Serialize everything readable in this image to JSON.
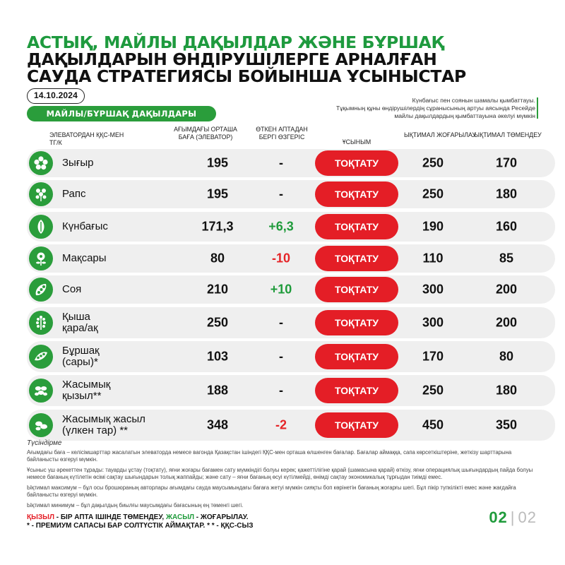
{
  "title": {
    "line1": "Астық, майлы дақылдар және бұршақ",
    "line2": "дақылдарын өндірушілерге арналған",
    "line3": "сауда стратегиясы бойынша ұсыныстар"
  },
  "date": "14.10.2024",
  "note": {
    "line1": "Күнбағыс пен соянын шамалы қымбаттауы.",
    "line2": "Тұқымның құны өндірушілердің сұранысының артуы аясында Ресейде",
    "line3": "майлы дақылдардың қымбаттауына әкелуі мүмкін"
  },
  "section": "Майлы/бұршақ дақылдары",
  "headers": {
    "name": "Элеватордан ҚҚС-мен тг/к",
    "avg": "Ағымдағы орташа баға (элеватор)",
    "change": "Өткен аптадан бергі өзгеріс",
    "action": "Ұсыным",
    "up": "Ықтимал жоғарылау",
    "down": "Ықтимал төмендеу"
  },
  "rows": [
    {
      "name": "Зығыр",
      "avg": "195",
      "change": "-",
      "change_type": "none",
      "action": "ТОҚТАТУ",
      "up": "250",
      "down": "170",
      "icon": "flax-flower-icon"
    },
    {
      "name": "Рапс",
      "avg": "195",
      "change": "-",
      "change_type": "none",
      "action": "ТОҚТАТУ",
      "up": "250",
      "down": "180",
      "icon": "rapeseed-flower-icon"
    },
    {
      "name": "Күнбағыс",
      "avg": "171,3",
      "change": "+6,3",
      "change_type": "pos",
      "action": "ТОҚТАТУ",
      "up": "190",
      "down": "160",
      "icon": "sunflower-seed-icon"
    },
    {
      "name": "Мақсары",
      "avg": "80",
      "change": "-10",
      "change_type": "neg",
      "action": "ТОҚТАТУ",
      "up": "110",
      "down": "85",
      "icon": "safflower-icon"
    },
    {
      "name": "Соя",
      "avg": "210",
      "change": "+10",
      "change_type": "pos",
      "action": "ТОҚТАТУ",
      "up": "300",
      "down": "200",
      "icon": "soy-pod-icon"
    },
    {
      "name": "Қыша\nқара/ақ",
      "avg": "250",
      "change": "-",
      "change_type": "none",
      "action": "ТОҚТАТУ",
      "up": "300",
      "down": "200",
      "icon": "mustard-plant-icon"
    },
    {
      "name": "Бұршақ\n(сары)*",
      "avg": "103",
      "change": "-",
      "change_type": "none",
      "action": "ТОҚТАТУ",
      "up": "170",
      "down": "80",
      "icon": "pea-pod-icon"
    },
    {
      "name": "Жасымық\nқызыл**",
      "avg": "188",
      "change": "-",
      "change_type": "none",
      "action": "ТОҚТАТУ",
      "up": "250",
      "down": "180",
      "icon": "red-lentil-icon"
    },
    {
      "name": "Жасымық жасыл\n(үлкен тар) **",
      "avg": "348",
      "change": "-2",
      "change_type": "neg",
      "action": "ТОҚТАТУ",
      "up": "450",
      "down": "350",
      "icon": "green-lentil-icon"
    }
  ],
  "legend": {
    "title": "Түсіндірме",
    "p1": "Ағымдағы баға – келісімшарттар жасалатын элеваторда немесе вагонда Қазақстан ішіндегі ҚҚС-мен орташа өлшенген бағалар. Бағалар аймаққа, сапа көрсеткіштеріне, жеткізу шарттарына байланысты өзгеруі мүмкін.",
    "p2": "Ұсыныс үш әрекеттен тұрады: тауарды ұстау (тоқтату), яғни жоғары бағамен сату мүмкіндігі болуы керек; қажеттілігіне қарай (шамасына қарай) өткізу, яғни операциялық шығындардың пайда болуы немесе бағаның күтілетін өсімі сақтау шығындарын толық жаппайды; және сату – яғни бағаның өсуі күтілмейді, өнімді сақтау экономикалық тұрғыдан тиімді емес.",
    "p3": "Ықтимал максимум – бұл осы брошюраның авторлары ағымдағы сауда маусымындағы бағаға жетуі мүмкін сияқты боп көрінетін бағаның жоғарғы шегі. Бұл пікір түпкілікті емес және жағдайға байланысты өзгеруі мүмкін.",
    "p4": "Ықтимал минимум – бұл дақылдың биылғы маусымдағы бағасының ең төменгі шегі."
  },
  "footer": {
    "red_word": "Қызыл",
    "red_text": " - бір апта ішінде төмендеу, ",
    "green_word": "Жасыл",
    "green_text": " - жоғарылау.",
    "line2": "* - премиум сапасы бар солтүстік аймақтар. * * - ҚҚС-сыз"
  },
  "page": {
    "current": "02",
    "separator": "|",
    "total": "02"
  },
  "colors": {
    "green": "#2a9d3b",
    "red": "#e41e26",
    "row_bg": "#efefef"
  }
}
